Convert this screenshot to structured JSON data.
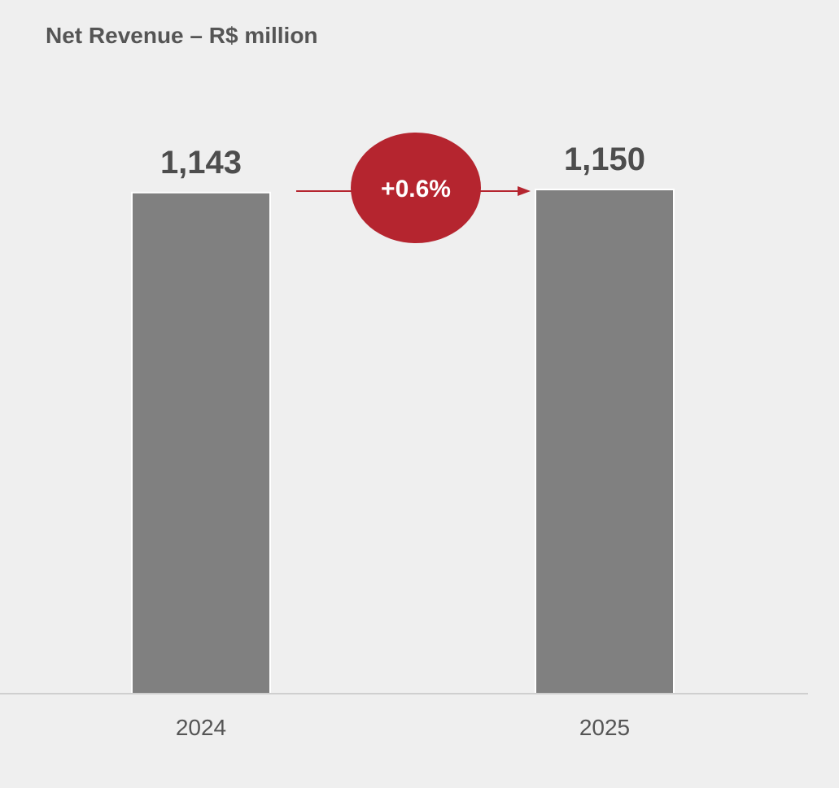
{
  "chart_data": {
    "type": "bar",
    "title": "Net Revenue – R$ million",
    "xlabel": "",
    "ylabel": "",
    "categories": [
      "2024",
      "2025"
    ],
    "values": [
      1143,
      1150
    ],
    "value_labels": [
      "1,143",
      "1,150"
    ],
    "ylim": [
      0,
      1150
    ],
    "grid": false,
    "legend": "none",
    "annotations": [
      {
        "text": "+0.6%",
        "from": "2024",
        "to": "2025"
      }
    ],
    "colors": {
      "bar": "#808080",
      "bar_outline": "#ffffff",
      "background": "#efefef",
      "axis": "#cfcfcf",
      "accent": "#b5252f",
      "title": "#555555",
      "value_text": "#4d4d4d",
      "tick_text": "#555555",
      "badge_text": "#ffffff"
    }
  }
}
